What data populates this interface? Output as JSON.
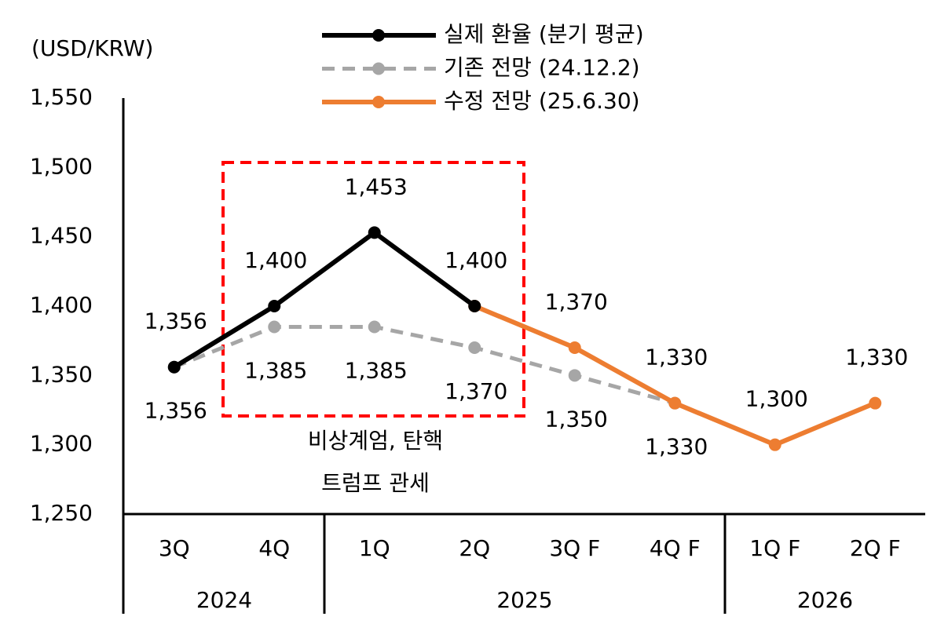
{
  "chart_data": {
    "type": "line",
    "axis_label": "(USD/KRW)",
    "categories": [
      "3Q",
      "4Q",
      "1Q",
      "2Q",
      "3Q F",
      "4Q F",
      "1Q F",
      "2Q F"
    ],
    "groups": [
      {
        "name": "2024",
        "span": 2
      },
      {
        "name": "2025",
        "span": 4
      },
      {
        "name": "2026",
        "span": 2
      }
    ],
    "series": [
      {
        "name": "실제 환율 (분기 평균)",
        "color": "#000000",
        "dashed": false,
        "values": [
          1356,
          1400,
          1453,
          1400,
          null,
          null,
          null,
          null
        ],
        "value_labels": [
          "1,356",
          "1,400",
          "1,453",
          "1,400",
          null,
          null,
          null,
          null
        ],
        "label_side": "above"
      },
      {
        "name": "기존 전망 (24.12.2)",
        "color": "#a6a6a6",
        "dashed": true,
        "values": [
          1356,
          1385,
          1385,
          1370,
          1350,
          1330,
          null,
          null
        ],
        "value_labels": [
          "1,356",
          "1,385",
          "1,385",
          "1,370",
          "1,350",
          "1,330",
          null,
          null
        ],
        "label_side": "below"
      },
      {
        "name": "수정 전망 (25.6.30)",
        "color": "#ed7d31",
        "dashed": false,
        "values": [
          null,
          null,
          null,
          1400,
          1370,
          1330,
          1300,
          1330
        ],
        "value_labels": [
          null,
          null,
          null,
          null,
          "1,370",
          "1,330",
          "1,300",
          "1,330"
        ],
        "label_side": "above"
      }
    ],
    "ylim": [
      1250,
      1550
    ],
    "yticks": [
      {
        "value": 1250,
        "label": "1,250"
      },
      {
        "value": 1300,
        "label": "1,300"
      },
      {
        "value": 1350,
        "label": "1,350"
      },
      {
        "value": 1400,
        "label": "1,400"
      },
      {
        "value": 1450,
        "label": "1,450"
      },
      {
        "value": 1500,
        "label": "1,500"
      },
      {
        "value": 1550,
        "label": "1,550"
      }
    ],
    "annotation": {
      "lines": [
        "비상계엄, 탄핵",
        "트럼프 관세"
      ],
      "color": "#ff0000"
    }
  }
}
